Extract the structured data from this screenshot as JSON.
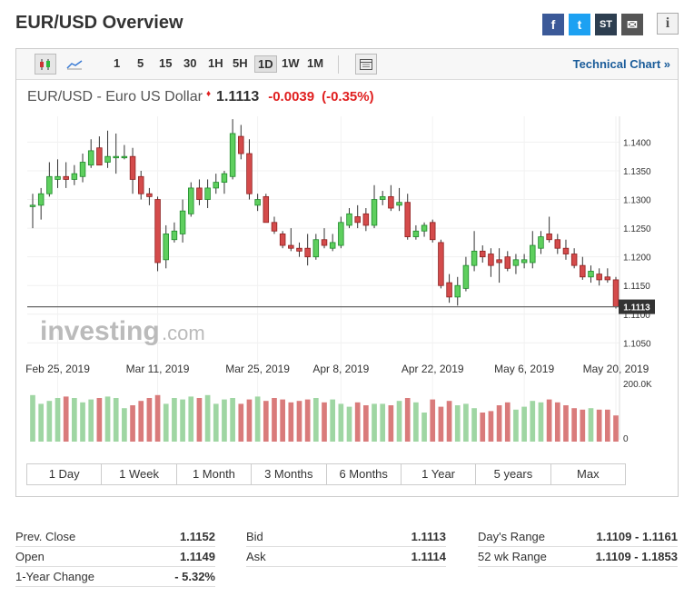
{
  "page_title": "EUR/USD Overview",
  "share": {
    "facebook": "f",
    "twitter": "t",
    "stocktwits": "ST",
    "mail": "✉",
    "info": "i"
  },
  "toolbar": {
    "intervals": [
      "1",
      "5",
      "15",
      "30",
      "1H",
      "5H",
      "1D",
      "1W",
      "1M"
    ],
    "active_interval": "1D",
    "technical_chart": "Technical Chart »"
  },
  "quote": {
    "name": "EUR/USD - Euro US Dollar",
    "price": "1.1113",
    "change": "-0.0039",
    "change_pct": "(-0.35%)",
    "direction": "down"
  },
  "ranges": [
    "1 Day",
    "1 Week",
    "1 Month",
    "3 Months",
    "6 Months",
    "1 Year",
    "5 years",
    "Max"
  ],
  "watermark": {
    "brand": "investing",
    "suffix": ".com"
  },
  "chart_data": {
    "type": "candlestick",
    "x_tick_labels": [
      "Feb 25, 2019",
      "Mar 11, 2019",
      "Mar 25, 2019",
      "Apr 8, 2019",
      "Apr 22, 2019",
      "May 6, 2019",
      "May 20, 2019"
    ],
    "y_tick_labels": [
      "1.1400",
      "1.1350",
      "1.1300",
      "1.1250",
      "1.1200",
      "1.1150",
      "1.1100",
      "1.1050"
    ],
    "ylim": [
      1.103,
      1.1445
    ],
    "last_price_label": "1.1113",
    "last_price": 1.1113,
    "volume_axis_labels": [
      "200.0K",
      "0"
    ],
    "volume_max": 200000,
    "candles": [
      {
        "o": 1.129,
        "h": 1.131,
        "l": 1.125,
        "c": 1.129
      },
      {
        "o": 1.129,
        "h": 1.132,
        "l": 1.1265,
        "c": 1.131
      },
      {
        "o": 1.131,
        "h": 1.1365,
        "l": 1.1305,
        "c": 1.134
      },
      {
        "o": 1.1335,
        "h": 1.137,
        "l": 1.132,
        "c": 1.134
      },
      {
        "o": 1.134,
        "h": 1.1365,
        "l": 1.132,
        "c": 1.1335
      },
      {
        "o": 1.1335,
        "h": 1.136,
        "l": 1.1325,
        "c": 1.1345
      },
      {
        "o": 1.134,
        "h": 1.138,
        "l": 1.133,
        "c": 1.1365
      },
      {
        "o": 1.136,
        "h": 1.1405,
        "l": 1.1355,
        "c": 1.1385
      },
      {
        "o": 1.139,
        "h": 1.141,
        "l": 1.136,
        "c": 1.136
      },
      {
        "o": 1.1365,
        "h": 1.142,
        "l": 1.1355,
        "c": 1.1375
      },
      {
        "o": 1.1375,
        "h": 1.1415,
        "l": 1.1345,
        "c": 1.1375
      },
      {
        "o": 1.1375,
        "h": 1.1395,
        "l": 1.137,
        "c": 1.1375
      },
      {
        "o": 1.1375,
        "h": 1.139,
        "l": 1.131,
        "c": 1.1335
      },
      {
        "o": 1.134,
        "h": 1.135,
        "l": 1.13,
        "c": 1.131
      },
      {
        "o": 1.131,
        "h": 1.132,
        "l": 1.129,
        "c": 1.1305
      },
      {
        "o": 1.13,
        "h": 1.1305,
        "l": 1.1175,
        "c": 1.119
      },
      {
        "o": 1.1195,
        "h": 1.1255,
        "l": 1.118,
        "c": 1.124
      },
      {
        "o": 1.123,
        "h": 1.126,
        "l": 1.1225,
        "c": 1.1245
      },
      {
        "o": 1.124,
        "h": 1.13,
        "l": 1.1225,
        "c": 1.128
      },
      {
        "o": 1.1275,
        "h": 1.133,
        "l": 1.127,
        "c": 1.132
      },
      {
        "o": 1.132,
        "h": 1.1335,
        "l": 1.129,
        "c": 1.13
      },
      {
        "o": 1.13,
        "h": 1.1335,
        "l": 1.1285,
        "c": 1.132
      },
      {
        "o": 1.132,
        "h": 1.1345,
        "l": 1.131,
        "c": 1.133
      },
      {
        "o": 1.133,
        "h": 1.135,
        "l": 1.131,
        "c": 1.1345
      },
      {
        "o": 1.134,
        "h": 1.144,
        "l": 1.1335,
        "c": 1.1415
      },
      {
        "o": 1.141,
        "h": 1.143,
        "l": 1.137,
        "c": 1.138
      },
      {
        "o": 1.138,
        "h": 1.1405,
        "l": 1.13,
        "c": 1.131
      },
      {
        "o": 1.129,
        "h": 1.131,
        "l": 1.128,
        "c": 1.13
      },
      {
        "o": 1.1305,
        "h": 1.131,
        "l": 1.126,
        "c": 1.126
      },
      {
        "o": 1.126,
        "h": 1.127,
        "l": 1.124,
        "c": 1.1245
      },
      {
        "o": 1.124,
        "h": 1.1245,
        "l": 1.1215,
        "c": 1.122
      },
      {
        "o": 1.122,
        "h": 1.125,
        "l": 1.121,
        "c": 1.1215
      },
      {
        "o": 1.1215,
        "h": 1.1225,
        "l": 1.12,
        "c": 1.121
      },
      {
        "o": 1.1215,
        "h": 1.124,
        "l": 1.1185,
        "c": 1.12
      },
      {
        "o": 1.12,
        "h": 1.124,
        "l": 1.1195,
        "c": 1.123
      },
      {
        "o": 1.123,
        "h": 1.125,
        "l": 1.1215,
        "c": 1.122
      },
      {
        "o": 1.1215,
        "h": 1.124,
        "l": 1.121,
        "c": 1.1225
      },
      {
        "o": 1.122,
        "h": 1.127,
        "l": 1.1215,
        "c": 1.126
      },
      {
        "o": 1.1255,
        "h": 1.1285,
        "l": 1.125,
        "c": 1.1275
      },
      {
        "o": 1.127,
        "h": 1.129,
        "l": 1.125,
        "c": 1.126
      },
      {
        "o": 1.1275,
        "h": 1.1285,
        "l": 1.1245,
        "c": 1.1255
      },
      {
        "o": 1.1255,
        "h": 1.1325,
        "l": 1.125,
        "c": 1.13
      },
      {
        "o": 1.13,
        "h": 1.1315,
        "l": 1.129,
        "c": 1.1305
      },
      {
        "o": 1.1305,
        "h": 1.1325,
        "l": 1.128,
        "c": 1.1285
      },
      {
        "o": 1.129,
        "h": 1.132,
        "l": 1.128,
        "c": 1.1295
      },
      {
        "o": 1.1295,
        "h": 1.131,
        "l": 1.123,
        "c": 1.1235
      },
      {
        "o": 1.1235,
        "h": 1.1255,
        "l": 1.123,
        "c": 1.1245
      },
      {
        "o": 1.1245,
        "h": 1.126,
        "l": 1.1235,
        "c": 1.1255
      },
      {
        "o": 1.126,
        "h": 1.1265,
        "l": 1.1225,
        "c": 1.123
      },
      {
        "o": 1.1225,
        "h": 1.123,
        "l": 1.1145,
        "c": 1.115
      },
      {
        "o": 1.1155,
        "h": 1.117,
        "l": 1.112,
        "c": 1.113
      },
      {
        "o": 1.113,
        "h": 1.1165,
        "l": 1.1115,
        "c": 1.115
      },
      {
        "o": 1.1145,
        "h": 1.12,
        "l": 1.114,
        "c": 1.1185
      },
      {
        "o": 1.1185,
        "h": 1.1245,
        "l": 1.1175,
        "c": 1.121
      },
      {
        "o": 1.121,
        "h": 1.122,
        "l": 1.119,
        "c": 1.12
      },
      {
        "o": 1.1205,
        "h": 1.1215,
        "l": 1.1165,
        "c": 1.1185
      },
      {
        "o": 1.1195,
        "h": 1.1215,
        "l": 1.1155,
        "c": 1.119
      },
      {
        "o": 1.12,
        "h": 1.121,
        "l": 1.1175,
        "c": 1.118
      },
      {
        "o": 1.1185,
        "h": 1.1205,
        "l": 1.117,
        "c": 1.1195
      },
      {
        "o": 1.119,
        "h": 1.1205,
        "l": 1.118,
        "c": 1.1195
      },
      {
        "o": 1.119,
        "h": 1.1245,
        "l": 1.118,
        "c": 1.122
      },
      {
        "o": 1.1215,
        "h": 1.1245,
        "l": 1.1205,
        "c": 1.1235
      },
      {
        "o": 1.124,
        "h": 1.127,
        "l": 1.1225,
        "c": 1.123
      },
      {
        "o": 1.123,
        "h": 1.124,
        "l": 1.1205,
        "c": 1.1215
      },
      {
        "o": 1.1215,
        "h": 1.123,
        "l": 1.1195,
        "c": 1.1205
      },
      {
        "o": 1.1205,
        "h": 1.1215,
        "l": 1.118,
        "c": 1.1185
      },
      {
        "o": 1.1185,
        "h": 1.12,
        "l": 1.116,
        "c": 1.1165
      },
      {
        "o": 1.1165,
        "h": 1.1185,
        "l": 1.1155,
        "c": 1.1175
      },
      {
        "o": 1.117,
        "h": 1.118,
        "l": 1.115,
        "c": 1.116
      },
      {
        "o": 1.1165,
        "h": 1.118,
        "l": 1.1155,
        "c": 1.116
      },
      {
        "o": 1.116,
        "h": 1.1165,
        "l": 1.111,
        "c": 1.1113
      }
    ],
    "volumes": [
      160,
      130,
      140,
      150,
      155,
      150,
      135,
      145,
      150,
      155,
      150,
      115,
      125,
      140,
      150,
      160,
      130,
      150,
      145,
      155,
      150,
      160,
      130,
      145,
      150,
      130,
      145,
      155,
      140,
      150,
      145,
      135,
      140,
      145,
      150,
      135,
      145,
      130,
      120,
      135,
      125,
      130,
      130,
      125,
      140,
      150,
      135,
      100,
      145,
      120,
      140,
      125,
      130,
      115,
      100,
      105,
      125,
      135,
      110,
      120,
      140,
      135,
      145,
      135,
      125,
      115,
      110,
      115,
      110,
      110,
      90
    ]
  },
  "stats": {
    "col1": [
      {
        "label": "Prev. Close",
        "value": "1.1152"
      },
      {
        "label": "Open",
        "value": "1.1149"
      },
      {
        "label": "1-Year Change",
        "value": "- 5.32%"
      }
    ],
    "col2": [
      {
        "label": "Bid",
        "value": "1.1113"
      },
      {
        "label": "Ask",
        "value": "1.1114"
      }
    ],
    "col3": [
      {
        "label": "Day's Range",
        "value": "1.1109 - 1.1161"
      },
      {
        "label": "52 wk Range",
        "value": "1.1109 - 1.1853"
      }
    ]
  },
  "colors": {
    "up": "#2db83d",
    "up_fill": "#5ecf5e",
    "down": "#cc3333",
    "down_fill": "#d44b4b",
    "vol_up": "#9fd6a3",
    "vol_down": "#d97b7b"
  }
}
